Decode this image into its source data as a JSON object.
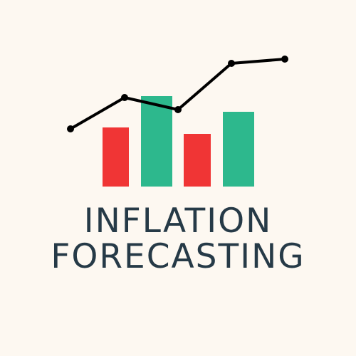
{
  "logo": {
    "title_line_1": "INFLATION",
    "title_line_2": "FORECASTING",
    "text_color": "#263a47",
    "background_color": "#fdf8f1",
    "bar_colors": {
      "down": "#f03535",
      "up": "#2db88d"
    },
    "bars": [
      {
        "direction": "down"
      },
      {
        "direction": "up"
      },
      {
        "direction": "down"
      },
      {
        "direction": "up"
      }
    ],
    "trend_line_color": "#000000"
  }
}
